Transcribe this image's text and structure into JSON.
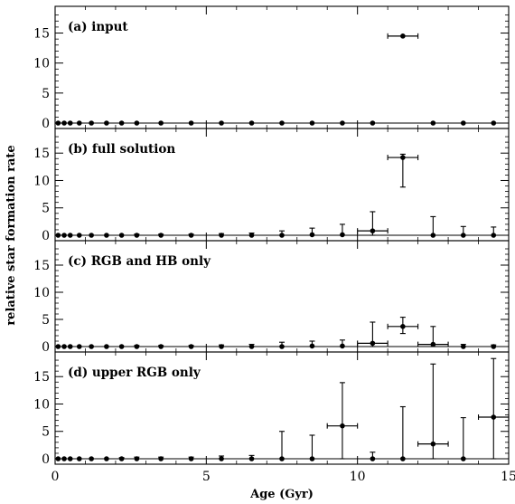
{
  "chart_data": {
    "type": "scatter",
    "xlabel": "Age (Gyr)",
    "ylabel": "relative star formation rate",
    "xlim": [
      0,
      15
    ],
    "ylim": [
      0,
      19
    ],
    "x_ticks": [
      0,
      5,
      10,
      15
    ],
    "y_ticks": [
      0,
      5,
      10,
      15
    ],
    "grid": false,
    "panels": [
      {
        "label": "(a) input",
        "points": [
          {
            "x": 0.1,
            "y": 0,
            "yerr": [
              0,
              0
            ]
          },
          {
            "x": 0.3,
            "y": 0,
            "yerr": [
              0,
              0
            ]
          },
          {
            "x": 0.5,
            "y": 0,
            "yerr": [
              0,
              0
            ]
          },
          {
            "x": 0.8,
            "y": 0,
            "yerr": [
              0,
              0
            ]
          },
          {
            "x": 1.2,
            "y": 0,
            "yerr": [
              0,
              0
            ]
          },
          {
            "x": 1.7,
            "y": 0,
            "yerr": [
              0,
              0
            ]
          },
          {
            "x": 2.2,
            "y": 0,
            "yerr": [
              0,
              0
            ]
          },
          {
            "x": 2.7,
            "y": 0,
            "yerr": [
              0,
              0
            ]
          },
          {
            "x": 3.5,
            "y": 0,
            "yerr": [
              0,
              0
            ]
          },
          {
            "x": 4.5,
            "y": 0,
            "yerr": [
              0,
              0
            ]
          },
          {
            "x": 5.5,
            "y": 0,
            "yerr": [
              0,
              0
            ]
          },
          {
            "x": 6.5,
            "y": 0,
            "yerr": [
              0,
              0
            ]
          },
          {
            "x": 7.5,
            "y": 0,
            "yerr": [
              0,
              0
            ]
          },
          {
            "x": 8.5,
            "y": 0,
            "yerr": [
              0,
              0
            ]
          },
          {
            "x": 9.5,
            "y": 0,
            "yerr": [
              0,
              0
            ]
          },
          {
            "x": 10.5,
            "y": 0,
            "yerr": [
              0,
              0
            ]
          },
          {
            "x": 11.5,
            "y": 14.5,
            "xerr": [
              11.0,
              12.0
            ],
            "yerr": [
              14.5,
              14.5
            ]
          },
          {
            "x": 12.5,
            "y": 0,
            "yerr": [
              0,
              0
            ]
          },
          {
            "x": 13.5,
            "y": 0,
            "yerr": [
              0,
              0
            ]
          },
          {
            "x": 14.5,
            "y": 0,
            "yerr": [
              0,
              0
            ]
          }
        ]
      },
      {
        "label": "(b) full solution",
        "points": [
          {
            "x": 0.1,
            "y": 0,
            "yerr": [
              0,
              0
            ]
          },
          {
            "x": 0.3,
            "y": 0,
            "yerr": [
              0,
              0
            ]
          },
          {
            "x": 0.5,
            "y": 0,
            "yerr": [
              0,
              0
            ]
          },
          {
            "x": 0.8,
            "y": 0,
            "yerr": [
              0,
              0
            ]
          },
          {
            "x": 1.2,
            "y": 0,
            "yerr": [
              0,
              0
            ]
          },
          {
            "x": 1.7,
            "y": 0,
            "yerr": [
              0,
              0
            ]
          },
          {
            "x": 2.2,
            "y": 0,
            "yerr": [
              0,
              0
            ]
          },
          {
            "x": 2.7,
            "y": 0,
            "yerr": [
              0,
              0.2
            ]
          },
          {
            "x": 3.5,
            "y": 0,
            "yerr": [
              0,
              0.2
            ]
          },
          {
            "x": 4.5,
            "y": 0,
            "yerr": [
              0,
              0.2
            ]
          },
          {
            "x": 5.5,
            "y": 0,
            "yerr": [
              0,
              0.3
            ]
          },
          {
            "x": 6.5,
            "y": 0,
            "yerr": [
              0,
              0.4
            ]
          },
          {
            "x": 7.5,
            "y": 0,
            "yerr": [
              0,
              0.8
            ]
          },
          {
            "x": 8.5,
            "y": 0.1,
            "yerr": [
              0,
              1.3
            ]
          },
          {
            "x": 9.5,
            "y": 0.1,
            "yerr": [
              0,
              2.0
            ]
          },
          {
            "x": 10.5,
            "y": 0.8,
            "xerr": [
              10.0,
              11.0
            ],
            "yerr": [
              0,
              4.3
            ]
          },
          {
            "x": 11.5,
            "y": 14.2,
            "xerr": [
              11.0,
              12.0
            ],
            "yerr": [
              8.8,
              14.8
            ]
          },
          {
            "x": 12.5,
            "y": 0,
            "yerr": [
              0,
              3.4
            ]
          },
          {
            "x": 13.5,
            "y": 0,
            "yerr": [
              0,
              1.6
            ]
          },
          {
            "x": 14.5,
            "y": 0,
            "yerr": [
              0,
              1.5
            ]
          }
        ]
      },
      {
        "label": "(c) RGB and HB only",
        "points": [
          {
            "x": 0.1,
            "y": 0,
            "yerr": [
              0,
              0
            ]
          },
          {
            "x": 0.3,
            "y": 0,
            "yerr": [
              0,
              0
            ]
          },
          {
            "x": 0.5,
            "y": 0,
            "yerr": [
              0,
              0
            ]
          },
          {
            "x": 0.8,
            "y": 0,
            "yerr": [
              0,
              0
            ]
          },
          {
            "x": 1.2,
            "y": 0,
            "yerr": [
              0,
              0
            ]
          },
          {
            "x": 1.7,
            "y": 0,
            "yerr": [
              0,
              0
            ]
          },
          {
            "x": 2.2,
            "y": 0,
            "yerr": [
              0,
              0
            ]
          },
          {
            "x": 2.7,
            "y": 0,
            "yerr": [
              0,
              0.2
            ]
          },
          {
            "x": 3.5,
            "y": 0,
            "yerr": [
              0,
              0.2
            ]
          },
          {
            "x": 4.5,
            "y": 0,
            "yerr": [
              0,
              0.2
            ]
          },
          {
            "x": 5.5,
            "y": 0,
            "yerr": [
              0,
              0.3
            ]
          },
          {
            "x": 6.5,
            "y": 0,
            "yerr": [
              0,
              0.4
            ]
          },
          {
            "x": 7.5,
            "y": 0,
            "yerr": [
              0,
              0.8
            ]
          },
          {
            "x": 8.5,
            "y": 0.1,
            "yerr": [
              0,
              1.0
            ]
          },
          {
            "x": 9.5,
            "y": 0.1,
            "yerr": [
              0,
              1.2
            ]
          },
          {
            "x": 10.5,
            "y": 0.6,
            "xerr": [
              10.0,
              11.0
            ],
            "yerr": [
              0,
              4.5
            ]
          },
          {
            "x": 11.5,
            "y": 3.7,
            "xerr": [
              11.0,
              12.0
            ],
            "yerr": [
              2.4,
              5.4
            ]
          },
          {
            "x": 12.5,
            "y": 0.4,
            "xerr": [
              12.0,
              13.0
            ],
            "yerr": [
              0,
              3.7
            ]
          },
          {
            "x": 13.5,
            "y": 0,
            "yerr": [
              0,
              0.4
            ]
          },
          {
            "x": 14.5,
            "y": 0,
            "yerr": [
              0,
              0.3
            ]
          }
        ]
      },
      {
        "label": "(d) upper RGB only",
        "points": [
          {
            "x": 0.1,
            "y": 0,
            "yerr": [
              0,
              0
            ]
          },
          {
            "x": 0.3,
            "y": 0,
            "yerr": [
              0,
              0
            ]
          },
          {
            "x": 0.5,
            "y": 0,
            "yerr": [
              0,
              0
            ]
          },
          {
            "x": 0.8,
            "y": 0,
            "yerr": [
              0,
              0
            ]
          },
          {
            "x": 1.2,
            "y": 0,
            "yerr": [
              0,
              0
            ]
          },
          {
            "x": 1.7,
            "y": 0,
            "yerr": [
              0,
              0
            ]
          },
          {
            "x": 2.2,
            "y": 0,
            "yerr": [
              0,
              0.2
            ]
          },
          {
            "x": 2.7,
            "y": 0,
            "yerr": [
              0,
              0.3
            ]
          },
          {
            "x": 3.5,
            "y": 0,
            "yerr": [
              0,
              0.3
            ]
          },
          {
            "x": 4.5,
            "y": 0,
            "yerr": [
              0,
              0.3
            ]
          },
          {
            "x": 5.5,
            "y": 0,
            "yerr": [
              0,
              0.5
            ]
          },
          {
            "x": 6.5,
            "y": 0,
            "yerr": [
              0,
              0.6
            ]
          },
          {
            "x": 7.5,
            "y": 0,
            "yerr": [
              0,
              5.0
            ]
          },
          {
            "x": 8.5,
            "y": 0,
            "yerr": [
              0,
              4.3
            ]
          },
          {
            "x": 9.5,
            "y": 6.0,
            "xerr": [
              9.0,
              10.0
            ],
            "yerr": [
              0,
              13.9
            ]
          },
          {
            "x": 10.5,
            "y": 0,
            "yerr": [
              0,
              1.2
            ]
          },
          {
            "x": 11.5,
            "y": 0,
            "yerr": [
              0,
              9.5
            ]
          },
          {
            "x": 12.5,
            "y": 2.7,
            "xerr": [
              12.0,
              13.0
            ],
            "yerr": [
              0,
              17.3
            ]
          },
          {
            "x": 13.5,
            "y": 0,
            "yerr": [
              0,
              7.5
            ]
          },
          {
            "x": 14.5,
            "y": 7.6,
            "xerr": [
              14.0,
              15.0
            ],
            "yerr": [
              0,
              18.3
            ]
          }
        ]
      }
    ]
  }
}
